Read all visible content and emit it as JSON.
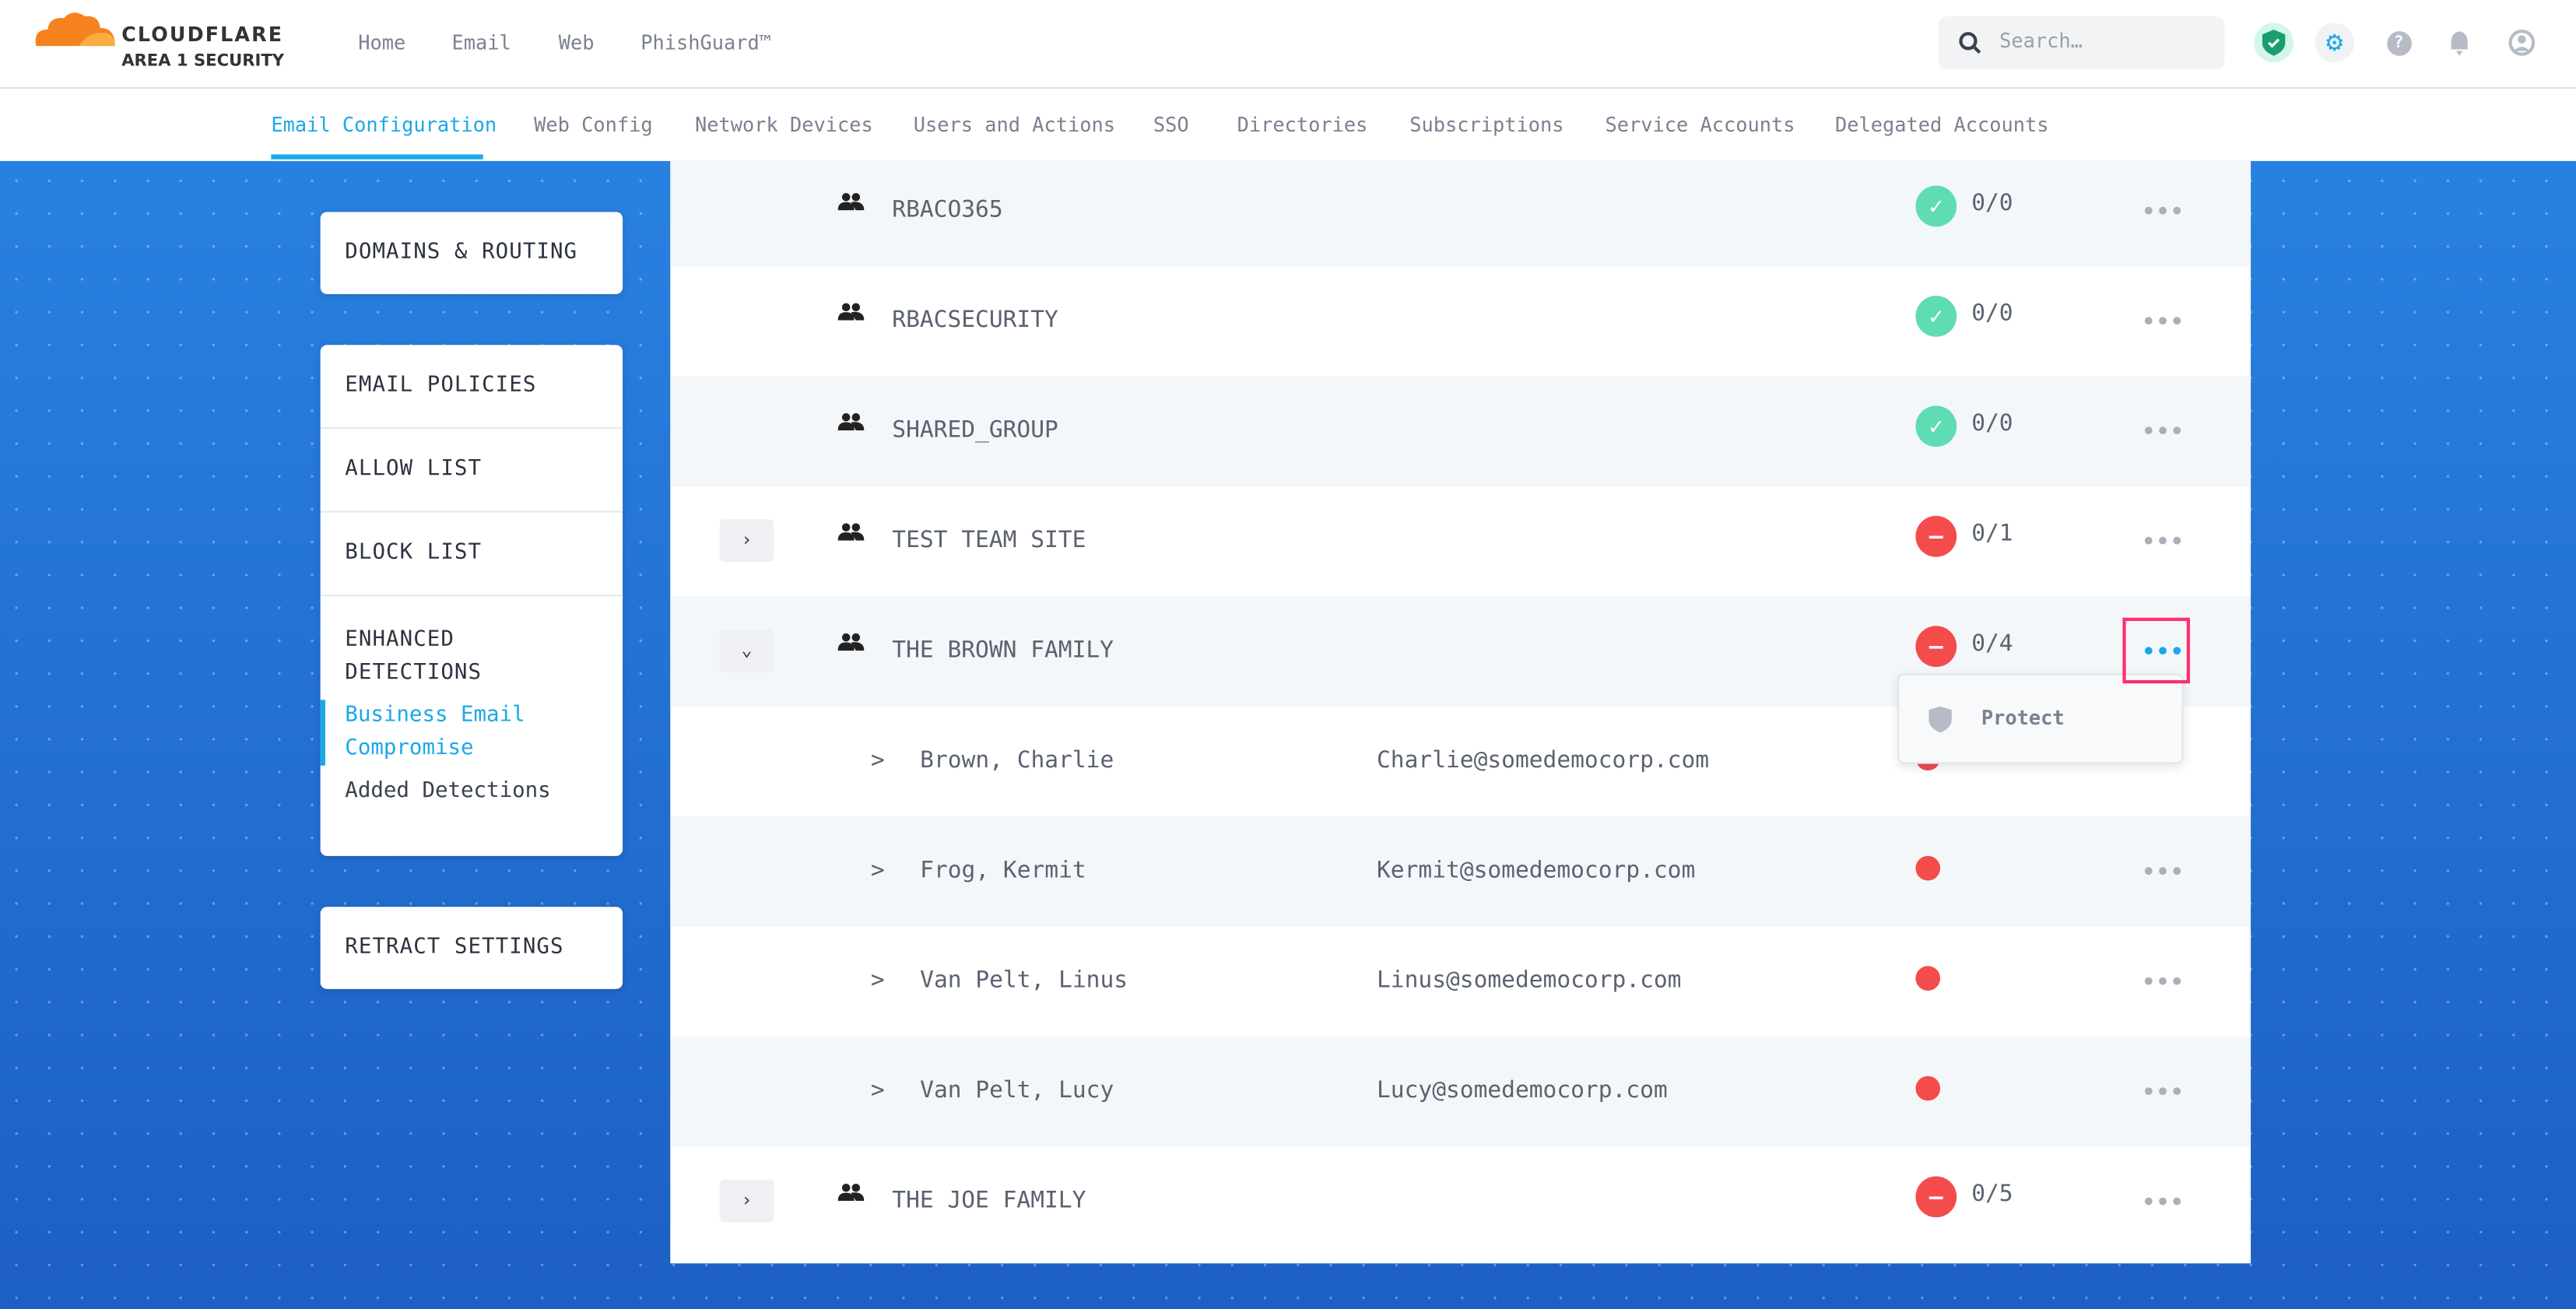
{
  "brand": {
    "name": "CLOUDFLARE",
    "sub": "AREA 1 SECURITY",
    "colors": {
      "accent": "#1ba8e8",
      "ok": "#5fdcb4",
      "error": "#f44b4b",
      "highlight": "#ff2d6f"
    }
  },
  "topnav": [
    "Home",
    "Email",
    "Web",
    "PhishGuard™"
  ],
  "search": {
    "placeholder": "Search…"
  },
  "header_icons": [
    "shield-check-icon",
    "gear-icon",
    "help-icon",
    "bell-icon",
    "user-icon"
  ],
  "tabs": [
    "Email Configuration",
    "Web Config",
    "Network Devices",
    "Users and Actions",
    "SSO",
    "Directories",
    "Subscriptions",
    "Service Accounts",
    "Delegated Accounts"
  ],
  "active_tab": "Email Configuration",
  "sidebar": {
    "domains": "DOMAINS & ROUTING",
    "policies": "EMAIL POLICIES",
    "allow": "ALLOW LIST",
    "block": "BLOCK LIST",
    "enhanced": "ENHANCED DETECTIONS",
    "bec": "Business Email Compromise",
    "added": "Added Detections",
    "retract": "RETRACT SETTINGS"
  },
  "groups": [
    {
      "name": "RBACO365",
      "count": "0/0",
      "status": "ok"
    },
    {
      "name": "RBACSECURITY",
      "count": "0/0",
      "status": "ok"
    },
    {
      "name": "SHARED_GROUP",
      "count": "0/0",
      "status": "ok"
    },
    {
      "name": "TEST TEAM SITE",
      "count": "0/1",
      "status": "error"
    },
    {
      "name": "THE BROWN FAMILY",
      "count": "0/4",
      "status": "error"
    },
    {
      "name": "THE JOE FAMILY",
      "count": "0/5",
      "status": "error"
    }
  ],
  "members": [
    {
      "name": "Brown, Charlie",
      "email": "Charlie@somedemocorp.com"
    },
    {
      "name": "Frog, Kermit",
      "email": "Kermit@somedemocorp.com"
    },
    {
      "name": "Van Pelt, Linus",
      "email": "Linus@somedemocorp.com"
    },
    {
      "name": "Van Pelt, Lucy",
      "email": "Lucy@somedemocorp.com"
    }
  ],
  "menu": {
    "protect": "Protect"
  },
  "glyphs": {
    "chevron_right": "›",
    "chevron_down": "⌄",
    "member_caret": ">",
    "more": "•••",
    "check": "✓",
    "minus": "—"
  }
}
